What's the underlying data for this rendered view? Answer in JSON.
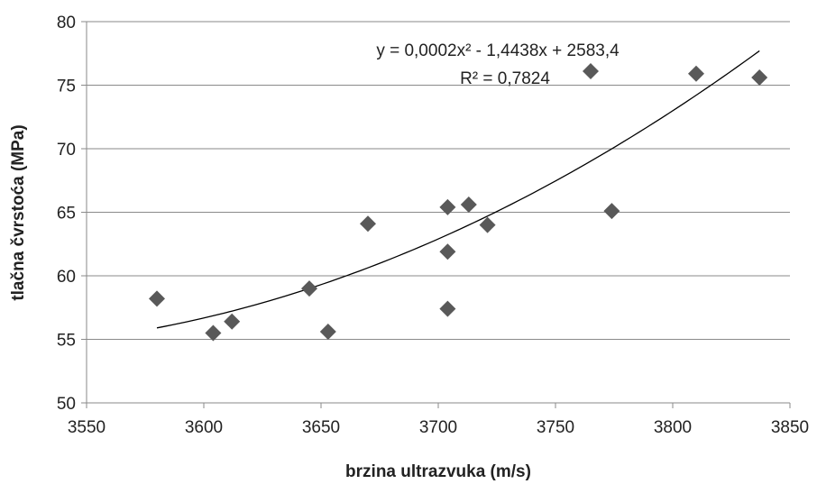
{
  "chart_data": {
    "type": "scatter",
    "title": "",
    "xlabel": "brzina ultrazvuka (m/s)",
    "ylabel": "tlačna čvrstoća (MPa)",
    "xlim": [
      3550,
      3850
    ],
    "ylim": [
      50,
      80
    ],
    "x_ticks": [
      3550,
      3600,
      3650,
      3700,
      3750,
      3800,
      3850
    ],
    "y_ticks": [
      50,
      55,
      60,
      65,
      70,
      75,
      80
    ],
    "x_tick_labels": [
      "3550",
      "3600",
      "3650",
      "3700",
      "3750",
      "3800",
      "3850"
    ],
    "y_tick_labels": [
      "50",
      "55",
      "60",
      "65",
      "70",
      "75",
      "80"
    ],
    "grid": "horizontal",
    "legend": "none",
    "marker": "diamond",
    "marker_color": "#595959",
    "trend_color": "#000000",
    "points": [
      {
        "x": 3580,
        "y": 58.2
      },
      {
        "x": 3604,
        "y": 55.5
      },
      {
        "x": 3612,
        "y": 56.4
      },
      {
        "x": 3645,
        "y": 59.0
      },
      {
        "x": 3653,
        "y": 55.6
      },
      {
        "x": 3670,
        "y": 64.1
      },
      {
        "x": 3704,
        "y": 65.4
      },
      {
        "x": 3704,
        "y": 61.9
      },
      {
        "x": 3704,
        "y": 57.4
      },
      {
        "x": 3713,
        "y": 65.6
      },
      {
        "x": 3721,
        "y": 64.0
      },
      {
        "x": 3765,
        "y": 76.1
      },
      {
        "x": 3774,
        "y": 65.1
      },
      {
        "x": 3810,
        "y": 75.9
      },
      {
        "x": 3837,
        "y": 75.6
      }
    ],
    "trendline": {
      "type": "polynomial",
      "order": 2,
      "x_range": [
        3580,
        3837
      ],
      "equation_label": "y = 0,0002x² - 1,4438x + 2583,4",
      "r2_label": "R² = 0,7824"
    }
  }
}
